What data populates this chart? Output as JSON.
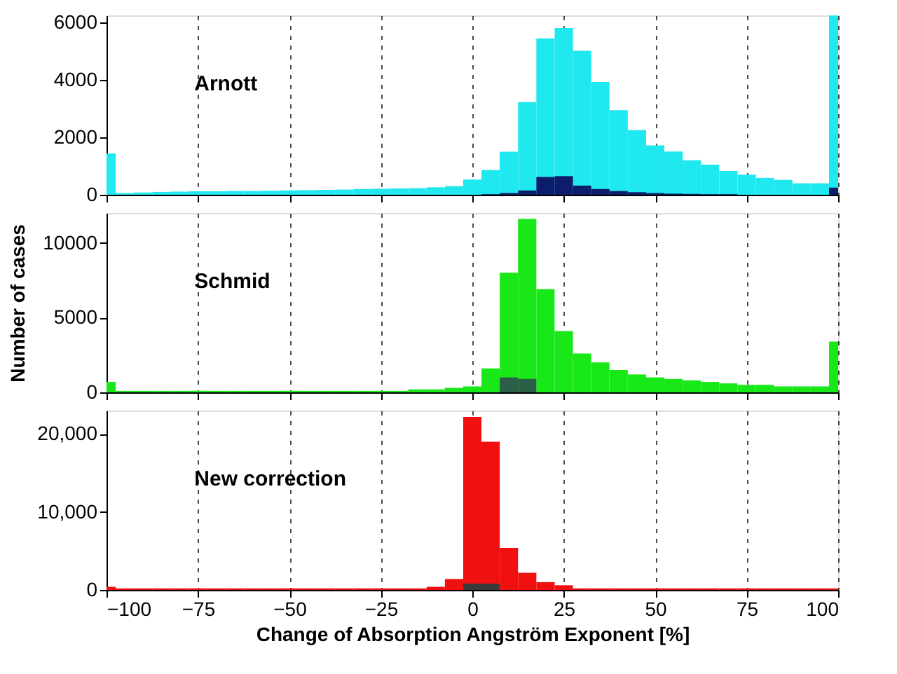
{
  "chart_data": [
    {
      "type": "histogram",
      "annotations": [
        "Arnott"
      ],
      "bins": [
        -100,
        -97.5,
        -92.5,
        -87.5,
        -82.5,
        -77.5,
        -72.5,
        -67.5,
        -62.5,
        -57.5,
        -52.5,
        -47.5,
        -42.5,
        -37.5,
        -32.5,
        -27.5,
        -22.5,
        -17.5,
        -12.5,
        -7.5,
        -2.5,
        2.5,
        7.5,
        12.5,
        17.5,
        22.5,
        27.5,
        32.5,
        37.5,
        42.5,
        47.5,
        52.5,
        57.5,
        62.5,
        67.5,
        72.5,
        77.5,
        82.5,
        87.5,
        92.5,
        97.5,
        100
      ],
      "series": [
        {
          "color": "#20e8ef",
          "values": [
            1440,
            60,
            80,
            100,
            110,
            120,
            120,
            130,
            130,
            140,
            150,
            160,
            170,
            180,
            200,
            210,
            220,
            230,
            260,
            300,
            530,
            860,
            1500,
            3230,
            5450,
            5810,
            5020,
            3930,
            2950,
            2250,
            1720,
            1510,
            1200,
            1050,
            830,
            700,
            590,
            520,
            400,
            400,
            6250
          ]
        },
        {
          "color": "#0d1d6b",
          "values": [
            0,
            0,
            0,
            0,
            0,
            0,
            0,
            0,
            0,
            0,
            0,
            0,
            0,
            0,
            0,
            0,
            0,
            0,
            0,
            0,
            0,
            20,
            60,
            150,
            620,
            650,
            320,
            200,
            130,
            90,
            60,
            40,
            30,
            20,
            20,
            null,
            null,
            null,
            null,
            null,
            250
          ]
        }
      ],
      "xlim": [
        -100,
        100
      ],
      "xticks": [
        -100,
        -75,
        -50,
        -25,
        0,
        25,
        50,
        75,
        100
      ],
      "ylim": [
        0,
        6250
      ],
      "yticks": [
        0,
        2000,
        4000,
        6000
      ],
      "grid": "x",
      "tick_labels": "y"
    },
    {
      "type": "histogram",
      "annotations": [
        "Schmid"
      ],
      "ylabel": "Number of cases",
      "bins": [
        -100,
        -97.5,
        -92.5,
        -87.5,
        -82.5,
        -77.5,
        -72.5,
        -67.5,
        -62.5,
        -57.5,
        -52.5,
        -47.5,
        -42.5,
        -37.5,
        -32.5,
        -27.5,
        -22.5,
        -17.5,
        -12.5,
        -7.5,
        -2.5,
        2.5,
        7.5,
        12.5,
        17.5,
        22.5,
        27.5,
        32.5,
        37.5,
        42.5,
        47.5,
        52.5,
        57.5,
        62.5,
        67.5,
        72.5,
        77.5,
        82.5,
        87.5,
        92.5,
        97.5,
        100
      ],
      "series": [
        {
          "color": "#18e818",
          "values": [
            700,
            100,
            100,
            100,
            100,
            100,
            100,
            100,
            100,
            100,
            100,
            100,
            100,
            100,
            100,
            100,
            100,
            200,
            200,
            300,
            400,
            1600,
            8000,
            11600,
            6900,
            4100,
            2600,
            2000,
            1500,
            1200,
            1000,
            900,
            800,
            700,
            600,
            500,
            500,
            400,
            400,
            400,
            3400
          ]
        },
        {
          "color": "#2d5e48",
          "values": [
            null,
            null,
            null,
            null,
            null,
            null,
            null,
            null,
            null,
            null,
            null,
            null,
            null,
            null,
            null,
            null,
            null,
            null,
            null,
            null,
            null,
            null,
            1000,
            900,
            null,
            null,
            null,
            null,
            null,
            null,
            null,
            null,
            null,
            null,
            null,
            null,
            null,
            null,
            null,
            null,
            null
          ]
        }
      ],
      "xlim": [
        -100,
        100
      ],
      "xticks": [
        -100,
        -75,
        -50,
        -25,
        0,
        25,
        50,
        75,
        100
      ],
      "ylim": [
        0,
        12000
      ],
      "yticks": [
        0,
        5000,
        10000
      ],
      "grid": "x",
      "tick_labels": "y"
    },
    {
      "type": "histogram",
      "annotations": [
        "New correction"
      ],
      "xlabel": "Change of Absorption Angström Exponent [%]",
      "bins": [
        -100,
        -97.5,
        -92.5,
        -87.5,
        -82.5,
        -77.5,
        -72.5,
        -67.5,
        -62.5,
        -57.5,
        -52.5,
        -47.5,
        -42.5,
        -37.5,
        -32.5,
        -27.5,
        -22.5,
        -17.5,
        -12.5,
        -7.5,
        -2.5,
        2.5,
        7.5,
        12.5,
        17.5,
        22.5,
        27.5,
        32.5,
        37.5,
        42.5,
        47.5,
        52.5,
        57.5,
        62.5,
        67.5,
        72.5,
        77.5,
        82.5,
        87.5,
        92.5,
        97.5,
        100
      ],
      "series": [
        {
          "color": "#f01010",
          "values": [
            400,
            200,
            200,
            200,
            200,
            200,
            200,
            200,
            200,
            200,
            200,
            200,
            200,
            200,
            200,
            200,
            200,
            200,
            400,
            1400,
            22200,
            19000,
            5400,
            2200,
            1000,
            600,
            200,
            200,
            200,
            200,
            200,
            200,
            200,
            200,
            200,
            200,
            200,
            200,
            200,
            200,
            200
          ]
        },
        {
          "color": "#3a3a3a",
          "values": [
            null,
            null,
            null,
            null,
            null,
            null,
            null,
            null,
            null,
            null,
            null,
            null,
            null,
            null,
            null,
            null,
            null,
            null,
            null,
            null,
            800,
            800,
            null,
            null,
            null,
            null,
            null,
            null,
            null,
            null,
            null,
            null,
            null,
            null,
            null,
            null,
            null,
            null,
            null,
            null,
            null
          ]
        }
      ],
      "xlim": [
        -100,
        100
      ],
      "xticks": [
        -100,
        -75,
        -50,
        -25,
        0,
        25,
        50,
        75,
        100
      ],
      "ylim": [
        0,
        23000
      ],
      "yticks": [
        0,
        {
          "value": 10000,
          "label": "10,000"
        },
        {
          "value": 20000,
          "label": "20,000"
        }
      ],
      "grid": "x"
    }
  ]
}
